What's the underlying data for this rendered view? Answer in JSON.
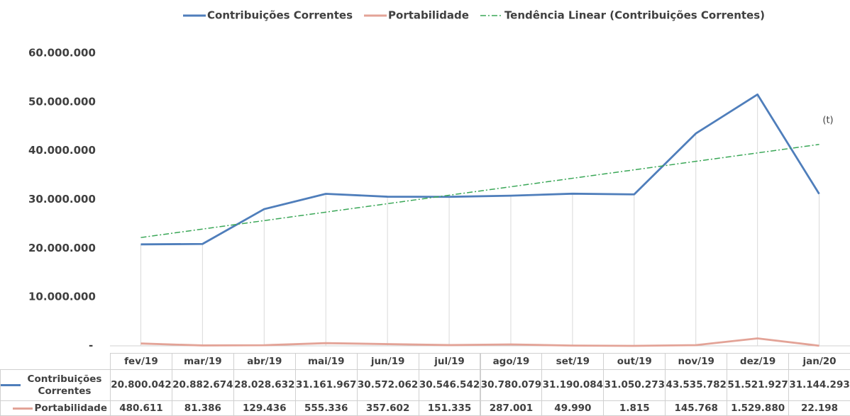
{
  "chart_data": {
    "type": "line",
    "categories": [
      "fev/19",
      "mar/19",
      "abr/19",
      "mai/19",
      "jun/19",
      "jul/19",
      "ago/19",
      "set/19",
      "out/19",
      "nov/19",
      "dez/19",
      "jan/20"
    ],
    "series": [
      {
        "name": "Contribuições Correntes",
        "color": "#4f7ebb",
        "values": [
          20800042,
          20882674,
          28028632,
          31161967,
          30572062,
          30546542,
          30780079,
          31190084,
          31050273,
          43535782,
          51521927,
          31144293
        ],
        "value_labels": [
          "20.800.042",
          "20.882.674",
          "28.028.632",
          "31.161.967",
          "30.572.062",
          "30.546.542",
          "30.780.079",
          "31.190.084",
          "31.050.273",
          "43.535.782",
          "51.521.927",
          "31.144.293"
        ]
      },
      {
        "name": "Portabilidade",
        "color": "#e3a397",
        "values": [
          480611,
          81386,
          129436,
          555336,
          357602,
          151335,
          287001,
          49990,
          1815,
          145768,
          1529880,
          22198
        ],
        "value_labels": [
          "480.611",
          "81.386",
          "129.436",
          "555.336",
          "357.602",
          "151.335",
          "287.001",
          "49.990",
          "1.815",
          "145.768",
          "1.529.880",
          "22.198"
        ]
      },
      {
        "name": "Tendência Linear (Contribuições Correntes)",
        "color": "#3aa757",
        "dashed": true,
        "values": [
          22200000,
          23940000,
          25670000,
          27410000,
          29140000,
          30880000,
          32610000,
          34350000,
          36080000,
          37820000,
          39550000,
          41290000
        ]
      }
    ],
    "ylim": [
      0,
      60000000
    ],
    "yticks": [
      {
        "value": 0,
        "label": "-"
      },
      {
        "value": 10000000,
        "label": "10.000.000"
      },
      {
        "value": 20000000,
        "label": "20.000.000"
      },
      {
        "value": 30000000,
        "label": "30.000.000"
      },
      {
        "value": 40000000,
        "label": "40.000.000"
      },
      {
        "value": 50000000,
        "label": "50.000.000"
      },
      {
        "value": 60000000,
        "label": "60.000.000"
      }
    ],
    "annotation": "(t)"
  }
}
